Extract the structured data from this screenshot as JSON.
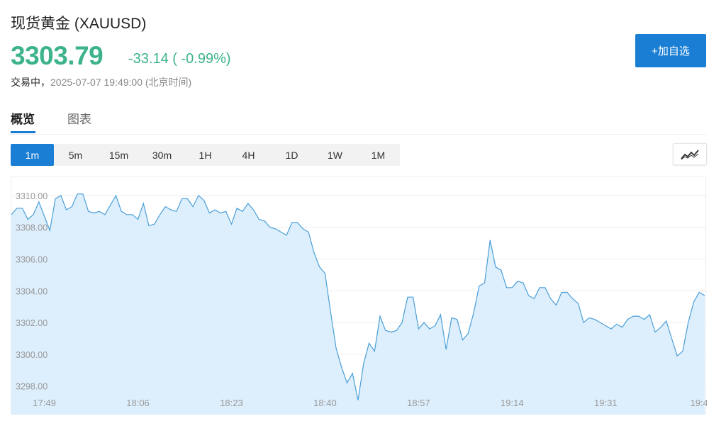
{
  "header": {
    "title": "现货黄金  (XAUUSD)",
    "price": "3303.79",
    "change": "-33.14 ( -0.99%)",
    "status": "交易中，",
    "timestamp": "2025-07-07 19:49:00  (北京时间)",
    "add_button": "+加自选"
  },
  "tabs": [
    {
      "label": "概览",
      "active": true
    },
    {
      "label": "图表",
      "active": false
    }
  ],
  "periods": [
    {
      "label": "1m",
      "active": true
    },
    {
      "label": "5m"
    },
    {
      "label": "15m"
    },
    {
      "label": "30m"
    },
    {
      "label": "1H"
    },
    {
      "label": "4H"
    },
    {
      "label": "1D"
    },
    {
      "label": "1W"
    },
    {
      "label": "1M"
    }
  ],
  "chart_type_icon": "line-chart-icon",
  "colors": {
    "accent": "#1a7fd4",
    "up_down": "#3db38a",
    "line": "#4a9fd8",
    "fill": "#ddeefc"
  },
  "chart_data": {
    "type": "area",
    "ylim": [
      3296.2,
      3311.2
    ],
    "y_ticks": [
      "3310.00",
      "3308.00",
      "3306.00",
      "3304.00",
      "3302.00",
      "3300.00",
      "3298.00"
    ],
    "y_tick_values": [
      3310,
      3308,
      3306,
      3304,
      3302,
      3300,
      3298
    ],
    "x_ticks": [
      "17:49",
      "18:06",
      "18:23",
      "18:40",
      "18:57",
      "19:14",
      "19:31",
      "19:4"
    ],
    "grid": true,
    "values": [
      3308.8,
      3309.2,
      3309.2,
      3308.5,
      3308.8,
      3309.6,
      3308.7,
      3307.8,
      3309.8,
      3310.0,
      3309.1,
      3309.3,
      3310.1,
      3310.1,
      3309.0,
      3308.9,
      3309.0,
      3308.8,
      3309.4,
      3310.0,
      3309.0,
      3308.8,
      3308.8,
      3308.5,
      3309.5,
      3308.1,
      3308.2,
      3308.8,
      3309.3,
      3309.1,
      3309.0,
      3309.8,
      3309.8,
      3309.3,
      3310.0,
      3309.7,
      3308.9,
      3309.1,
      3308.9,
      3309.0,
      3308.2,
      3309.2,
      3309.0,
      3309.5,
      3309.1,
      3308.5,
      3308.4,
      3308.0,
      3307.9,
      3307.7,
      3307.5,
      3308.3,
      3308.3,
      3307.9,
      3307.7,
      3306.4,
      3305.5,
      3305.1,
      3302.7,
      3300.4,
      3299.2,
      3298.2,
      3298.8,
      3297.1,
      3299.4,
      3300.7,
      3300.2,
      3302.4,
      3301.5,
      3301.4,
      3301.5,
      3302.0,
      3303.6,
      3303.6,
      3301.6,
      3302.0,
      3301.6,
      3301.8,
      3302.5,
      3300.3,
      3302.3,
      3302.2,
      3300.9,
      3301.3,
      3302.6,
      3304.3,
      3304.5,
      3307.2,
      3305.5,
      3305.3,
      3304.2,
      3304.2,
      3304.6,
      3304.5,
      3303.7,
      3303.5,
      3304.2,
      3304.2,
      3303.5,
      3303.1,
      3303.9,
      3303.9,
      3303.5,
      3303.2,
      3302.0,
      3302.3,
      3302.2,
      3302.0,
      3301.8,
      3301.6,
      3301.9,
      3301.7,
      3302.2,
      3302.4,
      3302.4,
      3302.2,
      3302.5,
      3301.4,
      3301.7,
      3302.1,
      3301.0,
      3299.9,
      3300.2,
      3302.0,
      3303.3,
      3303.9,
      3303.7
    ]
  }
}
